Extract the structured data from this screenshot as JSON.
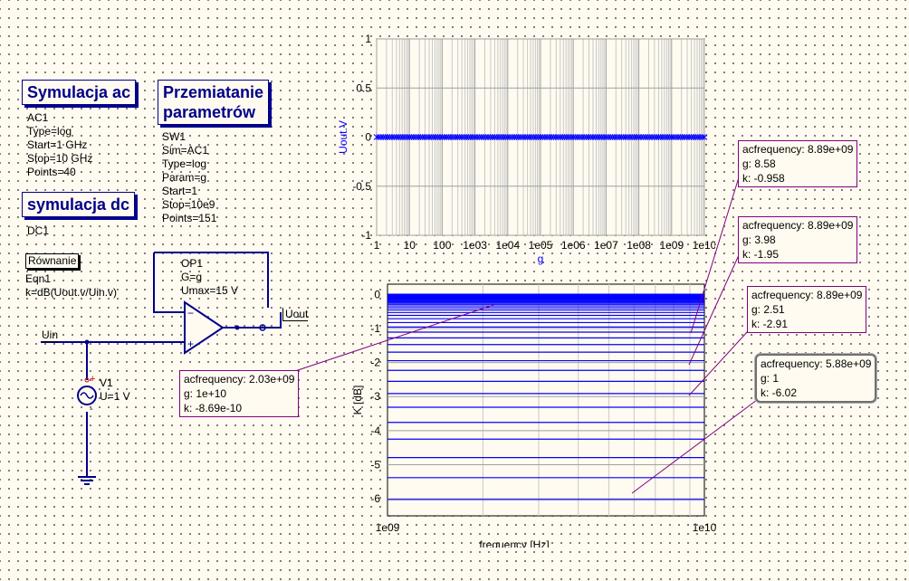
{
  "simulations": {
    "ac": {
      "title": "Symulacja ac",
      "props": [
        "AC1",
        "Type=log",
        "Start=1 GHz",
        "Stop=10 GHz",
        "Points=40"
      ]
    },
    "sweep": {
      "title_line1": "Przemiatanie",
      "title_line2": "parametrów",
      "props": [
        "SW1",
        "Sim=AC1",
        "Type=log",
        "Param=g",
        "Start=1",
        "Stop=10e9",
        "Points=151"
      ]
    },
    "dc": {
      "title": "symulacja dc",
      "props": [
        "DC1"
      ]
    },
    "equation": {
      "title": "Równanie",
      "props": [
        "Eqn1",
        "k=dB(Uout.v/Uin.v)"
      ]
    }
  },
  "schematic": {
    "opamp_props": [
      "OP1",
      "G=g",
      "Umax=15 V"
    ],
    "source_props": [
      "V1",
      "U=1 V"
    ],
    "uin_label": "Uin",
    "uout_label": "Uout",
    "plus_sign": "+",
    "minus_sign": "-"
  },
  "plot_top": {
    "ylabel": "Uout.V",
    "xlabel": "g",
    "yticks": [
      "1",
      "0.5",
      "0",
      "-0.5",
      "-1"
    ],
    "xticks": [
      "1",
      "10",
      "100",
      "1e03",
      "1e04",
      "1e05",
      "1e06",
      "1e07",
      "1e08",
      "1e09",
      "1e10"
    ]
  },
  "plot_bottom": {
    "ylabel": "K [dB]",
    "xlabel": "frequency [Hz]",
    "yticks": [
      "0",
      "-1",
      "-2",
      "-3",
      "-4",
      "-5",
      "-6"
    ],
    "xticks": [
      "1e09",
      "1e10"
    ]
  },
  "markers": [
    {
      "line1": "acfrequency: 2.03e+09",
      "line2": "g: 1e+10",
      "line3": "k: -8.69e-10"
    },
    {
      "line1": "acfrequency: 8.89e+09",
      "line2": "g: 8.58",
      "line3": "k: -0.958"
    },
    {
      "line1": "acfrequency: 8.89e+09",
      "line2": "g: 3.98",
      "line3": "k: -1.95"
    },
    {
      "line1": "acfrequency: 8.89e+09",
      "line2": "g: 2.51",
      "line3": "k: -2.91"
    },
    {
      "line1": "acfrequency: 5.88e+09",
      "line2": "g: 1",
      "line3": "k: -6.02"
    }
  ],
  "chart_data": [
    {
      "type": "scatter",
      "title": "",
      "xlabel": "g",
      "ylabel": "Uout.V",
      "xscale": "log",
      "xlim": [
        1,
        10000000000.0
      ],
      "ylim": [
        -1,
        1
      ],
      "grid": true,
      "series": [
        {
          "x_range": [
            1,
            10000000000.0
          ],
          "points": 151,
          "y": 0
        }
      ]
    },
    {
      "type": "line",
      "title": "",
      "xlabel": "frequency [Hz]",
      "ylabel": "K [dB]",
      "xscale": "log",
      "xlim": [
        1000000000.0,
        10000000000.0
      ],
      "ylim": [
        -6.5,
        0.3
      ],
      "grid": true,
      "markers": [
        {
          "x": 2030000000.0,
          "g": 10000000000.0,
          "k": -8.69e-10
        },
        {
          "x": 8890000000.0,
          "g": 8.58,
          "k": -0.958
        },
        {
          "x": 8890000000.0,
          "g": 3.98,
          "k": -1.95
        },
        {
          "x": 8890000000.0,
          "g": 2.51,
          "k": -2.91
        },
        {
          "x": 5880000000.0,
          "g": 1,
          "k": -6.02
        }
      ]
    }
  ]
}
